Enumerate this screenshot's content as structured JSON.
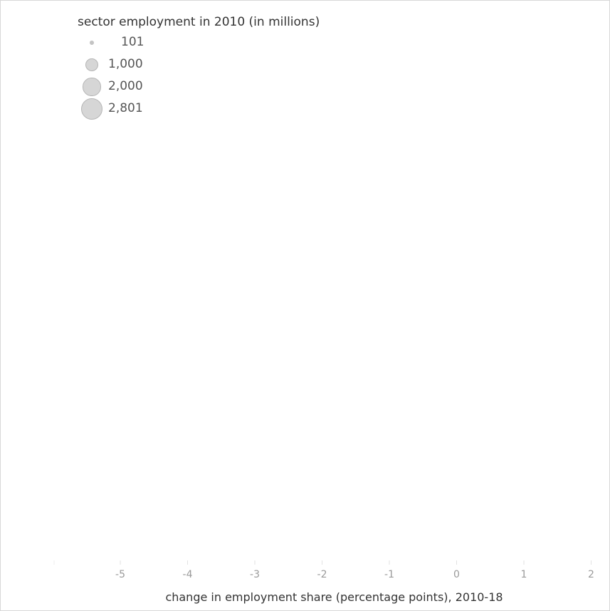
{
  "chart_data": {
    "type": "scatter",
    "legend": {
      "title": "sector employment in 2010 (in millions)",
      "placement": "top-left",
      "items": [
        {
          "label": "101",
          "value": 101
        },
        {
          "label": "1,000",
          "value": 1000
        },
        {
          "label": "2,000",
          "value": 2000
        },
        {
          "label": "2,801",
          "value": 2801
        }
      ]
    },
    "xlabel": "change in employment share (percentage points), 2010-18",
    "ylabel": "",
    "xlim": [
      -6,
      2
    ],
    "x_ticks": [
      {
        "value": -5,
        "label": "-5"
      },
      {
        "value": -4,
        "label": "-4"
      },
      {
        "value": -3,
        "label": "-3"
      },
      {
        "value": -2,
        "label": "-2"
      },
      {
        "value": -1,
        "label": "-1"
      },
      {
        "value": 0,
        "label": "0"
      },
      {
        "value": 1,
        "label": "1"
      },
      {
        "value": 2,
        "label": "2"
      }
    ],
    "series": [],
    "grid": false,
    "colors": {
      "marker_fill": "#d6d6d6",
      "marker_stroke": "#b5b5b5",
      "tick_text": "#9a9a9a",
      "title_text": "#333333"
    }
  }
}
